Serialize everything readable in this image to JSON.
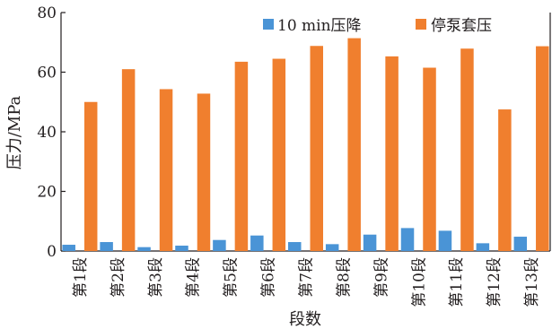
{
  "chart_data": {
    "type": "bar",
    "categories": [
      "第1段",
      "第2段",
      "第3段",
      "第4段",
      "第5段",
      "第6段",
      "第7段",
      "第8段",
      "第9段",
      "第10段",
      "第11段",
      "第12段",
      "第13段"
    ],
    "series": [
      {
        "name": "10 min压降",
        "color": "#4a94d6",
        "values": [
          2.1,
          3.0,
          1.3,
          1.8,
          3.7,
          5.2,
          3.0,
          2.3,
          5.5,
          7.7,
          6.8,
          2.6,
          4.8
        ]
      },
      {
        "name": "停泵套压",
        "color": "#f07f2e",
        "values": [
          50.0,
          61.0,
          54.3,
          52.8,
          63.5,
          64.5,
          68.8,
          71.4,
          65.3,
          61.5,
          67.9,
          47.5,
          68.7
        ]
      }
    ],
    "xlabel": "段数",
    "ylabel": "压力/MPa",
    "ylim": [
      0,
      80
    ],
    "yticks": [
      0,
      20,
      40,
      60,
      80
    ],
    "legend_position": "top-right",
    "grid": false
  }
}
